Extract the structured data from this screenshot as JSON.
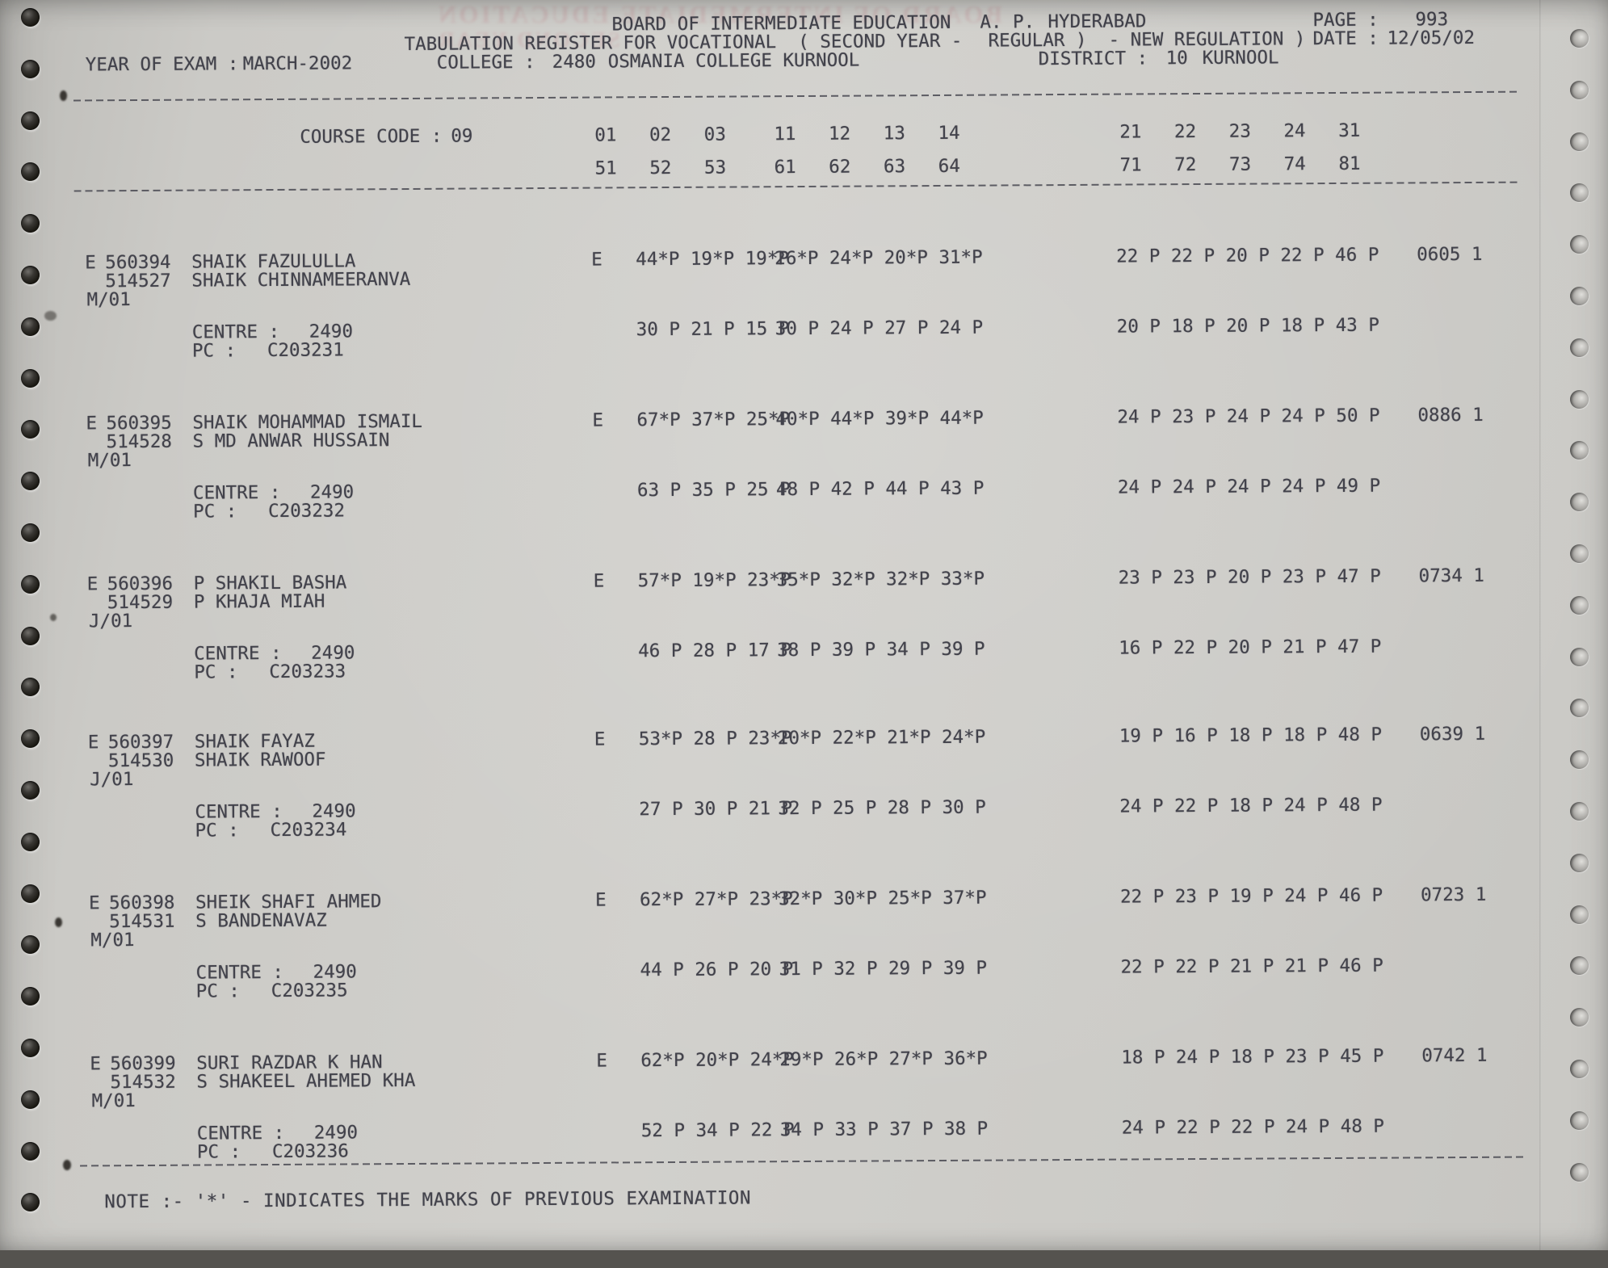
{
  "header": {
    "board": "BOARD OF INTERMEDIATE EDUCATION",
    "state": "A. P.",
    "city": "HYDERABAD",
    "page_label": "PAGE :",
    "page_number": "993",
    "register_title": "TABULATION REGISTER FOR VOCATIONAL  ( SECOND YEAR -",
    "regulation": "REGULAR )  - NEW REGULATION )",
    "date_label": "DATE :",
    "date_value": "12/05/02",
    "year_label": "YEAR OF EXAM :",
    "year_value": "MARCH-2002",
    "college_label": "COLLEGE :",
    "college_code": "2480",
    "college_name": "OSMANIA COLLEGE KURNOOL",
    "district_label": "DISTRICT :",
    "district_code": "10",
    "district_name": "KURNOOL"
  },
  "ghost": {
    "line1": "BOARD OF INTERMEDIATE EDUCATION",
    "line2": "SECOND YEAR"
  },
  "course": {
    "label": "COURSE CODE :",
    "code": "09",
    "row1_g1": "01   02   03",
    "row1_g2": "11   12   13   14",
    "row1_g3": "21   22   23   24   31",
    "row2_g1": "51   52   53",
    "row2_g2": "61   62   63   64",
    "row2_g3": "71   72   73   74   81"
  },
  "labels": {
    "centre": "CENTRE :",
    "pc": "PC :"
  },
  "records": [
    {
      "appearance": "E",
      "reg_no": "560394",
      "name": "SHAIK FAZULULLA",
      "secondary_no": "514527",
      "parent_name": "SHAIK CHINNAMEERANVA",
      "medium": "M/01",
      "lang": "E",
      "row1_g1": "44*P 19*P 19*P",
      "row1_g2": "26*P 24*P 20*P 31*P",
      "row1_g3": "22 P 22 P 20 P 22 P 46 P",
      "total": "0605 1",
      "centre": "2490",
      "pc": "C203231",
      "row2_g1": "30 P 21 P 15 P",
      "row2_g2": "30 P 24 P 27 P 24 P",
      "row2_g3": "20 P 18 P 20 P 18 P 43 P"
    },
    {
      "appearance": "E",
      "reg_no": "560395",
      "name": "SHAIK MOHAMMAD ISMAIL",
      "secondary_no": "514528",
      "parent_name": "S MD ANWAR HUSSAIN",
      "medium": "M/01",
      "lang": "E",
      "row1_g1": "67*P 37*P 25*P",
      "row1_g2": "40*P 44*P 39*P 44*P",
      "row1_g3": "24 P 23 P 24 P 24 P 50 P",
      "total": "0886 1",
      "centre": "2490",
      "pc": "C203232",
      "row2_g1": "63 P 35 P 25 P",
      "row2_g2": "48 P 42 P 44 P 43 P",
      "row2_g3": "24 P 24 P 24 P 24 P 49 P"
    },
    {
      "appearance": "E",
      "reg_no": "560396",
      "name": "P SHAKIL BASHA",
      "secondary_no": "514529",
      "parent_name": "P KHAJA MIAH",
      "medium": "J/01",
      "lang": "E",
      "row1_g1": "57*P 19*P 23*P",
      "row1_g2": "35*P 32*P 32*P 33*P",
      "row1_g3": "23 P 23 P 20 P 23 P 47 P",
      "total": "0734 1",
      "centre": "2490",
      "pc": "C203233",
      "row2_g1": "46 P 28 P 17 P",
      "row2_g2": "38 P 39 P 34 P 39 P",
      "row2_g3": "16 P 22 P 20 P 21 P 47 P"
    },
    {
      "appearance": "E",
      "reg_no": "560397",
      "name": "SHAIK FAYAZ",
      "secondary_no": "514530",
      "parent_name": "SHAIK RAWOOF",
      "medium": "J/01",
      "lang": "E",
      "row1_g1": "53*P 28 P 23*P",
      "row1_g2": "20*P 22*P 21*P 24*P",
      "row1_g3": "19 P 16 P 18 P 18 P 48 P",
      "total": "0639 1",
      "centre": "2490",
      "pc": "C203234",
      "row2_g1": "27 P 30 P 21 P",
      "row2_g2": "32 P 25 P 28 P 30 P",
      "row2_g3": "24 P 22 P 18 P 24 P 48 P"
    },
    {
      "appearance": "E",
      "reg_no": "560398",
      "name": "SHEIK SHAFI AHMED",
      "secondary_no": "514531",
      "parent_name": "S BANDENAVAZ",
      "medium": "M/01",
      "lang": "E",
      "row1_g1": "62*P 27*P 23*P",
      "row1_g2": "32*P 30*P 25*P 37*P",
      "row1_g3": "22 P 23 P 19 P 24 P 46 P",
      "total": "0723 1",
      "centre": "2490",
      "pc": "C203235",
      "row2_g1": "44 P 26 P 20 P",
      "row2_g2": "31 P 32 P 29 P 39 P",
      "row2_g3": "22 P 22 P 21 P 21 P 46 P"
    },
    {
      "appearance": "E",
      "reg_no": "560399",
      "name": "SURI RAZDAR K HAN",
      "secondary_no": "514532",
      "parent_name": "S SHAKEEL AHEMED KHA",
      "medium": "M/01",
      "lang": "E",
      "row1_g1": "62*P 20*P 24*P",
      "row1_g2": "29*P 26*P 27*P 36*P",
      "row1_g3": "18 P 24 P 18 P 23 P 45 P",
      "total": "0742 1",
      "centre": "2490",
      "pc": "C203236",
      "row2_g1": "52 P 34 P 22 P",
      "row2_g2": "34 P 33 P 37 P 38 P",
      "row2_g3": "24 P 22 P 22 P 24 P 48 P"
    }
  ],
  "note": "NOTE :- '*' - INDICATES THE MARKS OF PREVIOUS EXAMINATION",
  "colors": {
    "paper": "#cdccc8",
    "ink": "#42424b",
    "ghost_pink": "#b8505f"
  }
}
